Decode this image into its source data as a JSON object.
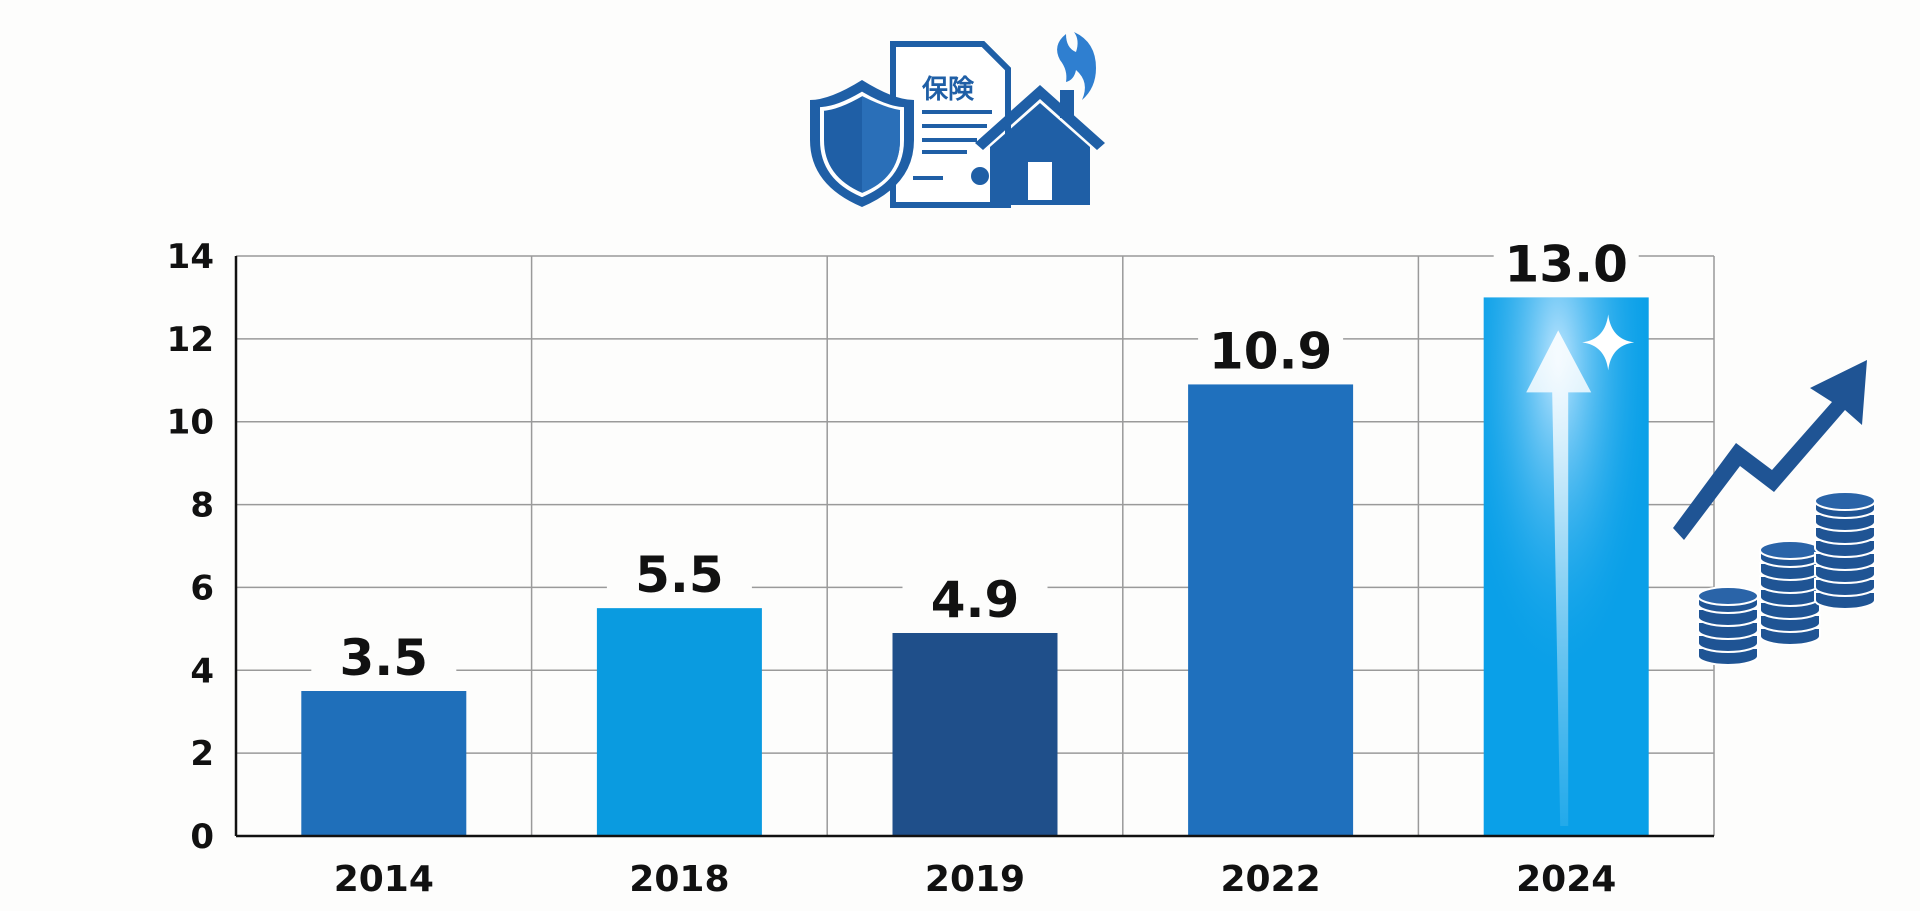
{
  "illustration": {
    "document_text": "保険",
    "icons": [
      "shield-icon",
      "insurance-document-icon",
      "house-on-fire-icon",
      "rising-trend-arrow-icon",
      "coin-stacks-icon"
    ],
    "color": "#1f5fa6"
  },
  "chart_data": {
    "type": "bar",
    "title": "",
    "xlabel": "",
    "ylabel": "",
    "categories": [
      "2014",
      "2018",
      "2019",
      "2022",
      "2024"
    ],
    "values": [
      3.5,
      5.5,
      4.9,
      10.9,
      13.0
    ],
    "data_labels": [
      "3.5",
      "5.5",
      "4.9",
      "10.9",
      "13.0"
    ],
    "bar_colors": [
      "#1f6fba",
      "#0a9be0",
      "#1f4f8a",
      "#1f70bd",
      "#0aa0e8"
    ],
    "ylim": [
      0,
      14
    ],
    "yticks": [
      "0",
      "2",
      "4",
      "6",
      "8",
      "10",
      "12",
      "14"
    ],
    "grid": true,
    "legend": "none",
    "highlight": {
      "category": "2024",
      "decoration": "upward-arrow-with-sparkle"
    }
  }
}
